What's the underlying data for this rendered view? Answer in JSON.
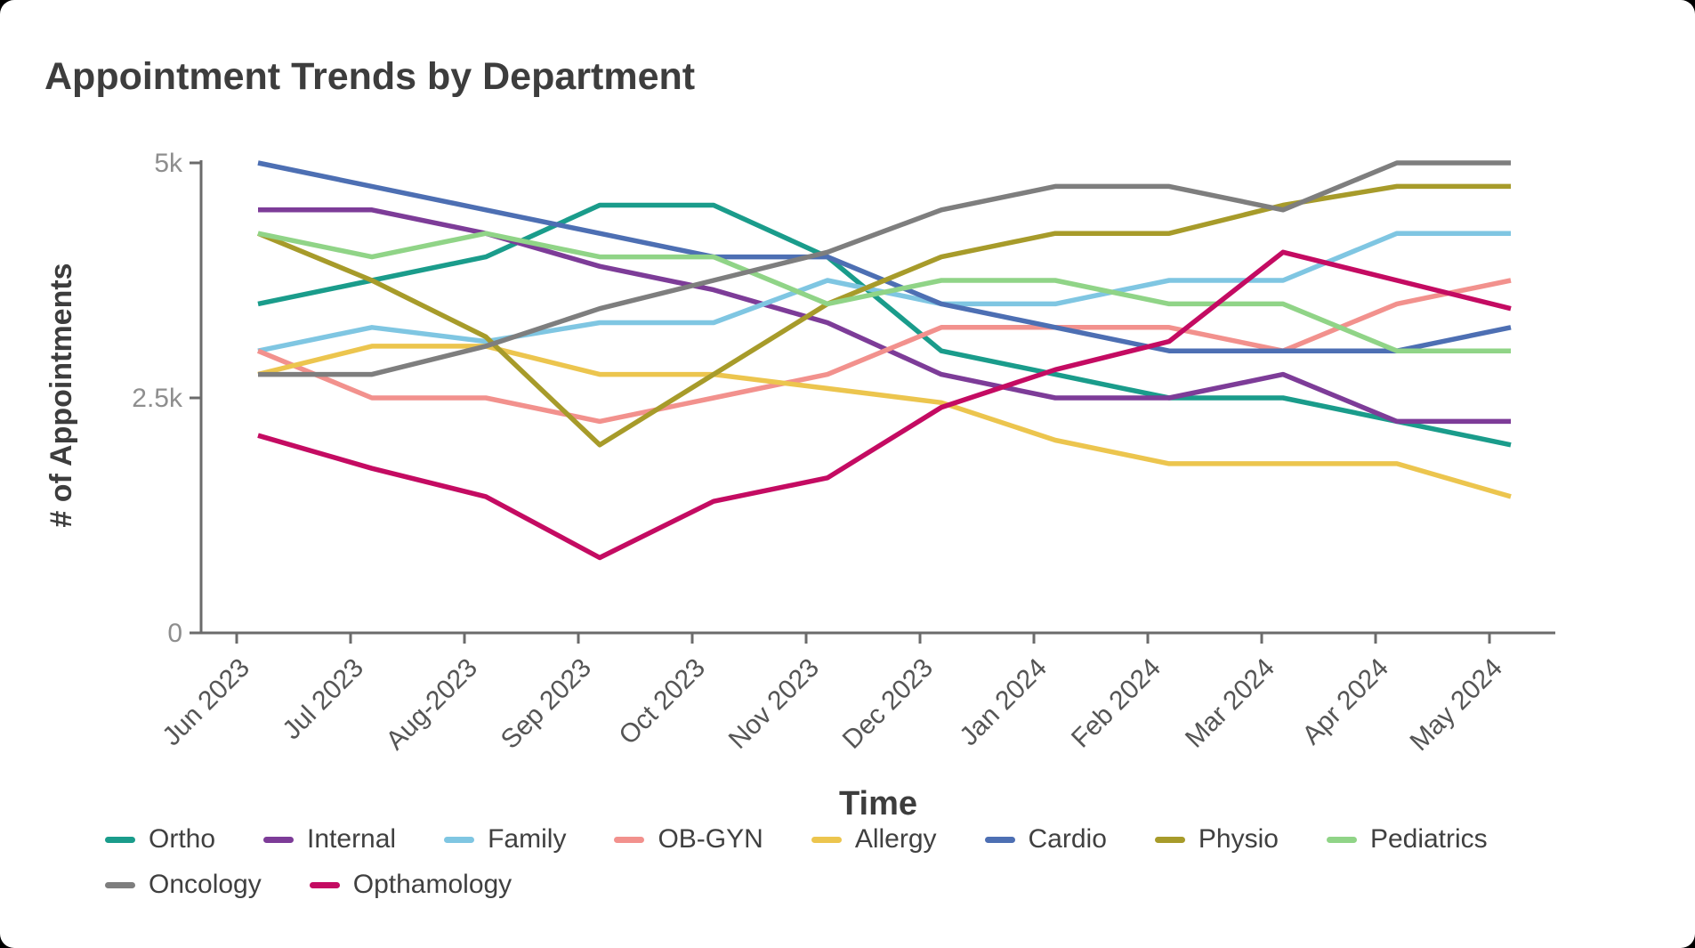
{
  "title": "Appointment Trends by Department",
  "chart_data": {
    "type": "line",
    "title": "Appointment Trends by Department",
    "xlabel": "Time",
    "ylabel": "# of Appointments",
    "x": [
      "Jun 2023",
      "Jul 2023",
      "Aug-2023",
      "Sep 2023",
      "Oct 2023",
      "Nov 2023",
      "Dec 2023",
      "Jan 2024",
      "Feb 2024",
      "Mar 2024",
      "Apr 2024",
      "May 2024"
    ],
    "ylim": [
      0,
      5000
    ],
    "yticks": [
      {
        "value": 0,
        "label": "0"
      },
      {
        "value": 2500,
        "label": "2.5k"
      },
      {
        "value": 5000,
        "label": "5k"
      }
    ],
    "grid": false,
    "legend_position": "bottom-left",
    "series": [
      {
        "name": "Ortho",
        "color": "#1a9c8b",
        "values": [
          3500,
          3750,
          4000,
          4550,
          4550,
          4000,
          3000,
          2750,
          2500,
          2500,
          2250,
          2000
        ]
      },
      {
        "name": "Internal",
        "color": "#7d3c98",
        "values": [
          4500,
          4500,
          4250,
          3900,
          3650,
          3300,
          2750,
          2500,
          2500,
          2750,
          2250,
          2250
        ]
      },
      {
        "name": "Family",
        "color": "#7fc6e2",
        "values": [
          3000,
          3250,
          3100,
          3300,
          3300,
          3750,
          3500,
          3500,
          3750,
          3750,
          4250,
          4250
        ]
      },
      {
        "name": "OB-GYN",
        "color": "#f2918d",
        "values": [
          3000,
          2500,
          2500,
          2250,
          2500,
          2750,
          3250,
          3250,
          3250,
          3000,
          3500,
          3750
        ]
      },
      {
        "name": "Allergy",
        "color": "#ecc54e",
        "values": [
          2750,
          3050,
          3050,
          2750,
          2750,
          2600,
          2450,
          2050,
          1800,
          1800,
          1800,
          1450
        ]
      },
      {
        "name": "Cardio",
        "color": "#4d6fb3",
        "values": [
          5000,
          4750,
          4500,
          4250,
          4000,
          4000,
          3500,
          3250,
          3000,
          3000,
          3000,
          3250
        ]
      },
      {
        "name": "Physio",
        "color": "#a79b2a",
        "values": [
          4250,
          3750,
          3150,
          2000,
          2750,
          3500,
          4000,
          4250,
          4250,
          4550,
          4750,
          4750
        ]
      },
      {
        "name": "Pediatrics",
        "color": "#90d487",
        "values": [
          4250,
          4000,
          4250,
          4000,
          4000,
          3500,
          3750,
          3750,
          3500,
          3500,
          3000,
          3000
        ]
      },
      {
        "name": "Oncology",
        "color": "#7e7e7e",
        "values": [
          2750,
          2750,
          3050,
          3450,
          3750,
          4050,
          4500,
          4750,
          4750,
          4500,
          5000,
          5000
        ]
      },
      {
        "name": "Opthamology",
        "color": "#c40b62",
        "values": [
          2100,
          1750,
          1450,
          800,
          1400,
          1650,
          2400,
          2800,
          3100,
          4050,
          3750,
          3450
        ]
      }
    ]
  }
}
